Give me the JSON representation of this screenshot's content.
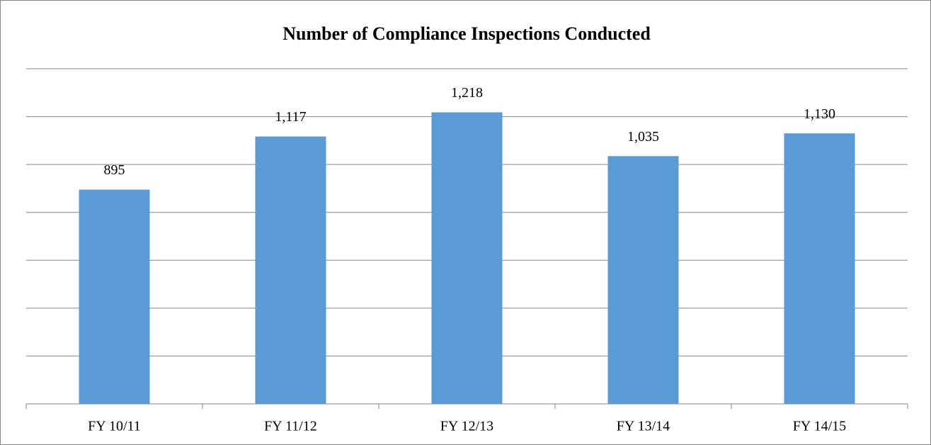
{
  "chart_data": {
    "type": "bar",
    "title": "Number of Compliance Inspections Conducted",
    "categories": [
      "FY 10/11",
      "FY 11/12",
      "FY 12/13",
      "FY 13/14",
      "FY 14/15"
    ],
    "values": [
      895,
      1117,
      1218,
      1035,
      1130
    ],
    "value_labels": [
      "895",
      "1,117",
      "1,218",
      "1,035",
      "1,130"
    ],
    "color": "#5b9bd5",
    "ylim": [
      0,
      1400
    ],
    "yticks": [
      0,
      200,
      400,
      600,
      800,
      1000,
      1200,
      1400
    ],
    "grid": true
  }
}
